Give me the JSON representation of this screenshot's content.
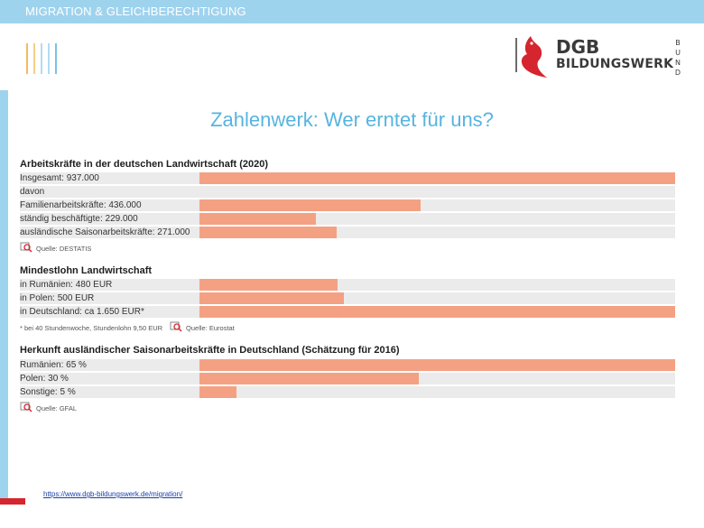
{
  "header": {
    "section_label": "MIGRATION & GLEICHBERECHTIGUNG",
    "colors": {
      "bar": "#9ed3ee",
      "accent_red": "#d5252e"
    }
  },
  "logo": {
    "line1": "DGB",
    "line2": "BILDUNGSWERK",
    "vertical": "BUND",
    "icon": "dgb-bird-logo-icon"
  },
  "title": "Zahlenwerk: Wer erntet für uns?",
  "chart_data": [
    {
      "type": "bar",
      "orientation": "horizontal",
      "title": "Arbeitskräfte in der deutschen Landwirtschaft (2020)",
      "rows": [
        {
          "label": "Insgesamt: 937.000",
          "value": 937000
        },
        {
          "label": "davon",
          "value": null
        },
        {
          "label": "Familienarbeitskräfte: 436.000",
          "value": 436000
        },
        {
          "label": "ständig beschäftigte: 229.000",
          "value": 229000
        },
        {
          "label": "ausländische Saisonarbeitskräfte: 271.000",
          "value": 271000
        }
      ],
      "max": 937000,
      "source": "Quelle: DESTATIS"
    },
    {
      "type": "bar",
      "orientation": "horizontal",
      "title": "Mindestlohn Landwirtschaft",
      "rows": [
        {
          "label": "in Rumänien: 480 EUR",
          "value": 480
        },
        {
          "label": "in Polen: 500 EUR",
          "value": 500
        },
        {
          "label": "in Deutschland: ca 1.650 EUR*",
          "value": 1650
        }
      ],
      "max": 1650,
      "footnote": "* bei 40 Stundenwoche, Stundenlohn 9,50 EUR",
      "source": "Quelle: Eurostat"
    },
    {
      "type": "bar",
      "orientation": "horizontal",
      "title": "Herkunft ausländischer Saisonarbeitskräfte in Deutschland (Schätzung für 2016)",
      "rows": [
        {
          "label": "Rumänien: 65 %",
          "value": 65
        },
        {
          "label": "Polen: 30 %",
          "value": 30
        },
        {
          "label": "Sonstige: 5 %",
          "value": 5
        }
      ],
      "max": 65,
      "source": "Quelle: GFAL"
    }
  ],
  "colors": {
    "bar_fill": "#f4a183",
    "row_bg": "#ebebeb",
    "title": "#57b4e0"
  },
  "footer": {
    "link": "https://www.dgb-bildungswerk.de/migration/"
  }
}
